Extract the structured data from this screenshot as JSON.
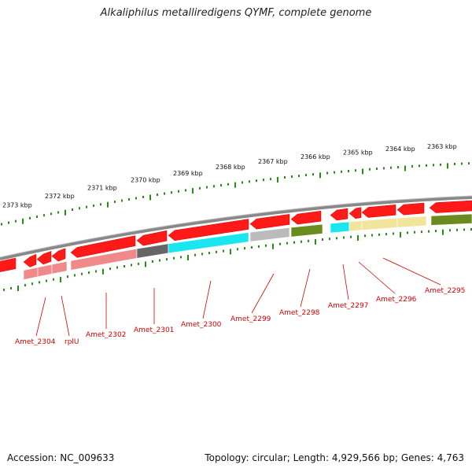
{
  "title": "Alkaliphilus metalliredigens QYMF, complete genome",
  "footer": {
    "accession": "Accession: NC_009633",
    "stats": "Topology: circular; Length: 4,929,566 bp; Genes: 4,763"
  },
  "colors": {
    "forward_gene": "#ff1a1a",
    "tick": "#2a8a1a",
    "backbone": "#888888",
    "label": "#d40000",
    "pink": "#f08a8a",
    "dark_gray": "#666666",
    "cyan": "#1ae6f0",
    "light_gray": "#bbbbbb",
    "olive": "#6a8c1e",
    "light_yellow": "#f0e59a"
  },
  "tick_labels": [
    "2373 kbp",
    "2372 kbp",
    "2371 kbp",
    "2370 kbp",
    "2369 kbp",
    "2368 kbp",
    "2367 kbp",
    "2366 kbp",
    "2365 kbp",
    "2364 kbp",
    "2363 kbp"
  ],
  "gene_labels": [
    "Amet_2304",
    "rplU",
    "Amet_2302",
    "Amet_2301",
    "Amet_2300",
    "Amet_2299",
    "Amet_2298",
    "Amet_2297",
    "Amet_2296",
    "Amet_2295"
  ]
}
